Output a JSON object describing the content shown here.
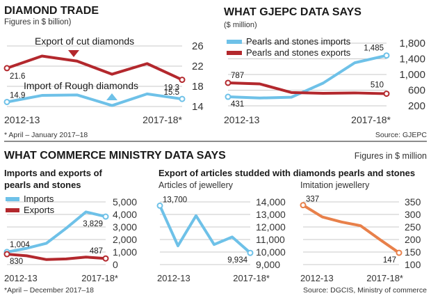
{
  "panels": {
    "diamond_trade": {
      "title": "DIAMOND TRADE",
      "subtitle": "Figures in $ billion)",
      "footnote": "* April – January 2017–18"
    },
    "gjepc": {
      "title": "WHAT GJEPC DATA SAYS",
      "subtitle": "($ million)",
      "source": "Source: GJEPC"
    },
    "commerce": {
      "title": "WHAT COMMERCE MINISTRY DATA SAYS",
      "units": "Figures in $ million",
      "pearls_title_line1": "Imports and exports of",
      "pearls_title_line2": "pearls and stones",
      "studded_title": "Export of articles studded with diamonds pearls and stones",
      "footnote": "*April – December 2017–18",
      "source": "Source: DGCIS, Ministry of commerce"
    }
  },
  "colors": {
    "blue": "#6ec1e8",
    "red": "#b3282d",
    "orange": "#e8804a",
    "grid": "#c8c8c8",
    "text": "#1a1a1a"
  },
  "chart_data": [
    {
      "id": "diamond",
      "type": "line",
      "x_labels": [
        "2012-13",
        "2017-18*"
      ],
      "ylim": [
        14,
        26
      ],
      "y_ticks": [
        14,
        18,
        22,
        26
      ],
      "grid": true,
      "series": [
        {
          "name": "Export of cut diamonds",
          "color_key": "red",
          "values": [
            21.6,
            24.0,
            23.0,
            20.4,
            22.5,
            19.3
          ],
          "labels": [
            "21.6",
            "",
            "",
            "",
            "",
            "19.3"
          ]
        },
        {
          "name": "Import of Rough diamonds",
          "color_key": "blue",
          "values": [
            14.9,
            16.2,
            16.3,
            14.2,
            16.5,
            15.5
          ],
          "labels": [
            "14.9",
            "",
            "",
            "",
            "",
            "15.5"
          ]
        }
      ]
    },
    {
      "id": "gjepc",
      "type": "line",
      "x_labels": [
        "2012-13",
        "2017-18*"
      ],
      "ylim": [
        200,
        1800
      ],
      "y_ticks": [
        200,
        600,
        1000,
        1400,
        1800
      ],
      "y_tick_labels": [
        "200",
        "600",
        "1,000",
        "1,400",
        "1,800"
      ],
      "grid": true,
      "legend": "top-left",
      "series": [
        {
          "name": "Pearls and stones imports",
          "color_key": "blue",
          "values": [
            431,
            400,
            420,
            780,
            1300,
            1485
          ],
          "labels": [
            "431",
            "",
            "",
            "",
            "",
            "1,485"
          ]
        },
        {
          "name": "Pearls and stones exports",
          "color_key": "red",
          "values": [
            787,
            760,
            540,
            520,
            530,
            510
          ],
          "labels": [
            "787",
            "",
            "",
            "",
            "",
            "510"
          ]
        }
      ]
    },
    {
      "id": "pearls",
      "type": "line",
      "x_labels": [
        "2012-13",
        "2017-18*"
      ],
      "ylim": [
        0,
        5000
      ],
      "y_ticks": [
        0,
        1000,
        2000,
        3000,
        4000,
        5000
      ],
      "y_tick_labels": [
        "0",
        "1,000",
        "2,000",
        "3,000",
        "4,000",
        "5,000"
      ],
      "grid": true,
      "legend": "top-left",
      "series": [
        {
          "name": "Imports",
          "color_key": "blue",
          "values": [
            1004,
            1300,
            1700,
            2900,
            4200,
            3829
          ],
          "labels": [
            "1,004",
            "",
            "",
            "",
            "",
            "3,829"
          ]
        },
        {
          "name": "Exports",
          "color_key": "red",
          "values": [
            830,
            700,
            400,
            450,
            600,
            487
          ],
          "labels": [
            "830",
            "",
            "",
            "",
            "",
            "487"
          ]
        }
      ]
    },
    {
      "id": "jewellery",
      "type": "line",
      "title": "Articles of jewellery",
      "x_labels": [
        "2012-13",
        "2017-18*"
      ],
      "ylim": [
        9000,
        14000
      ],
      "y_ticks": [
        9000,
        10000,
        11000,
        12000,
        13000,
        14000
      ],
      "y_tick_labels": [
        "9,000",
        "10,000",
        "11,000",
        "12,000",
        "13,000",
        "14,000"
      ],
      "grid": true,
      "series": [
        {
          "name": "Articles of jewellery",
          "color_key": "blue",
          "values": [
            13700,
            10500,
            12900,
            10600,
            11200,
            9934
          ],
          "labels": [
            "13,700",
            "",
            "",
            "",
            "",
            "9,934"
          ]
        }
      ]
    },
    {
      "id": "imitation",
      "type": "line",
      "title": "Imitation jewellery",
      "x_labels": [
        "2012-13",
        "2017-18*"
      ],
      "ylim": [
        100,
        350
      ],
      "y_ticks": [
        100,
        150,
        200,
        250,
        300,
        350
      ],
      "grid": true,
      "series": [
        {
          "name": "Imitation jewellery",
          "color_key": "orange",
          "values": [
            337,
            290,
            270,
            255,
            200,
            147
          ],
          "labels": [
            "337",
            "",
            "",
            "",
            "",
            "147"
          ]
        }
      ]
    }
  ]
}
